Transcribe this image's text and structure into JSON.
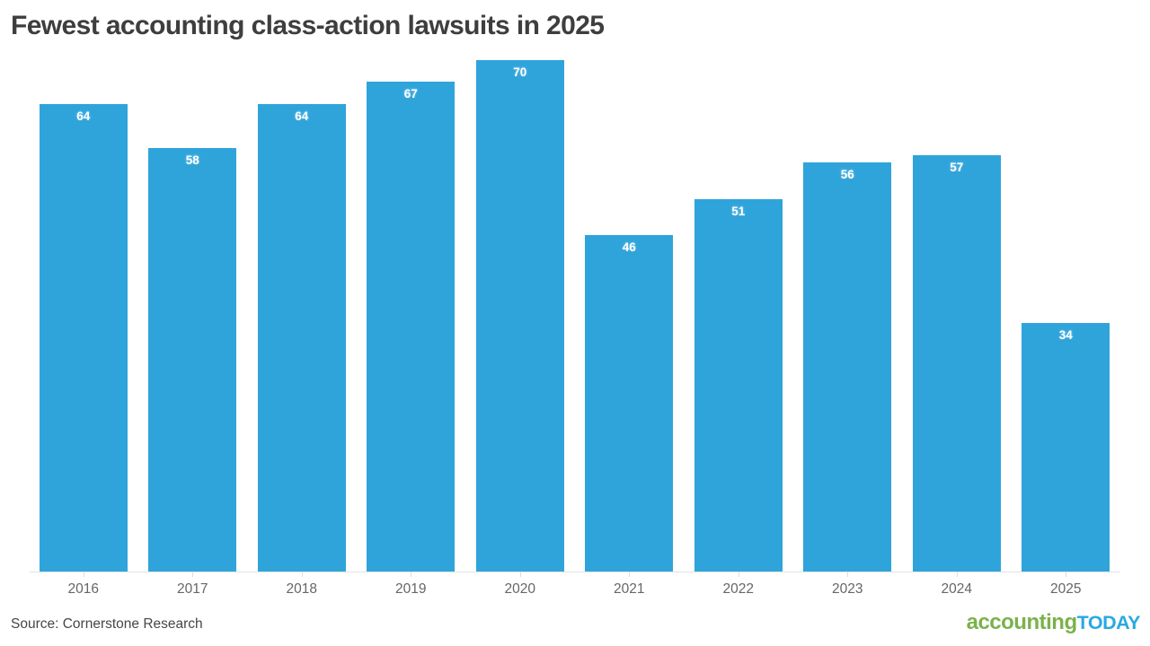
{
  "title": "Fewest accounting class-action lawsuits in 2025",
  "source_note": "Source: Cornerstone Research",
  "logo": {
    "part_green": "accounting",
    "part_blue": "TODAY"
  },
  "colors": {
    "bar": "#2fa4da",
    "bar_label_halo": "#6ec6ee",
    "title_text": "#3e3e3e",
    "axis_line": "#e2e2e2",
    "tick_label": "#666666",
    "logo_green": "#7bb14c",
    "logo_blue": "#29a9e1"
  },
  "chart_data": {
    "type": "bar",
    "title": "Fewest accounting class-action lawsuits in 2025",
    "categories": [
      "2016",
      "2017",
      "2018",
      "2019",
      "2020",
      "2021",
      "2022",
      "2023",
      "2024",
      "2025"
    ],
    "values": [
      64,
      58,
      64,
      67,
      70,
      46,
      51,
      56,
      57,
      34
    ],
    "xlabel": "",
    "ylabel": "",
    "ylim": [
      0,
      70
    ],
    "grid": false,
    "legend_position": "none",
    "data_labels": true
  }
}
